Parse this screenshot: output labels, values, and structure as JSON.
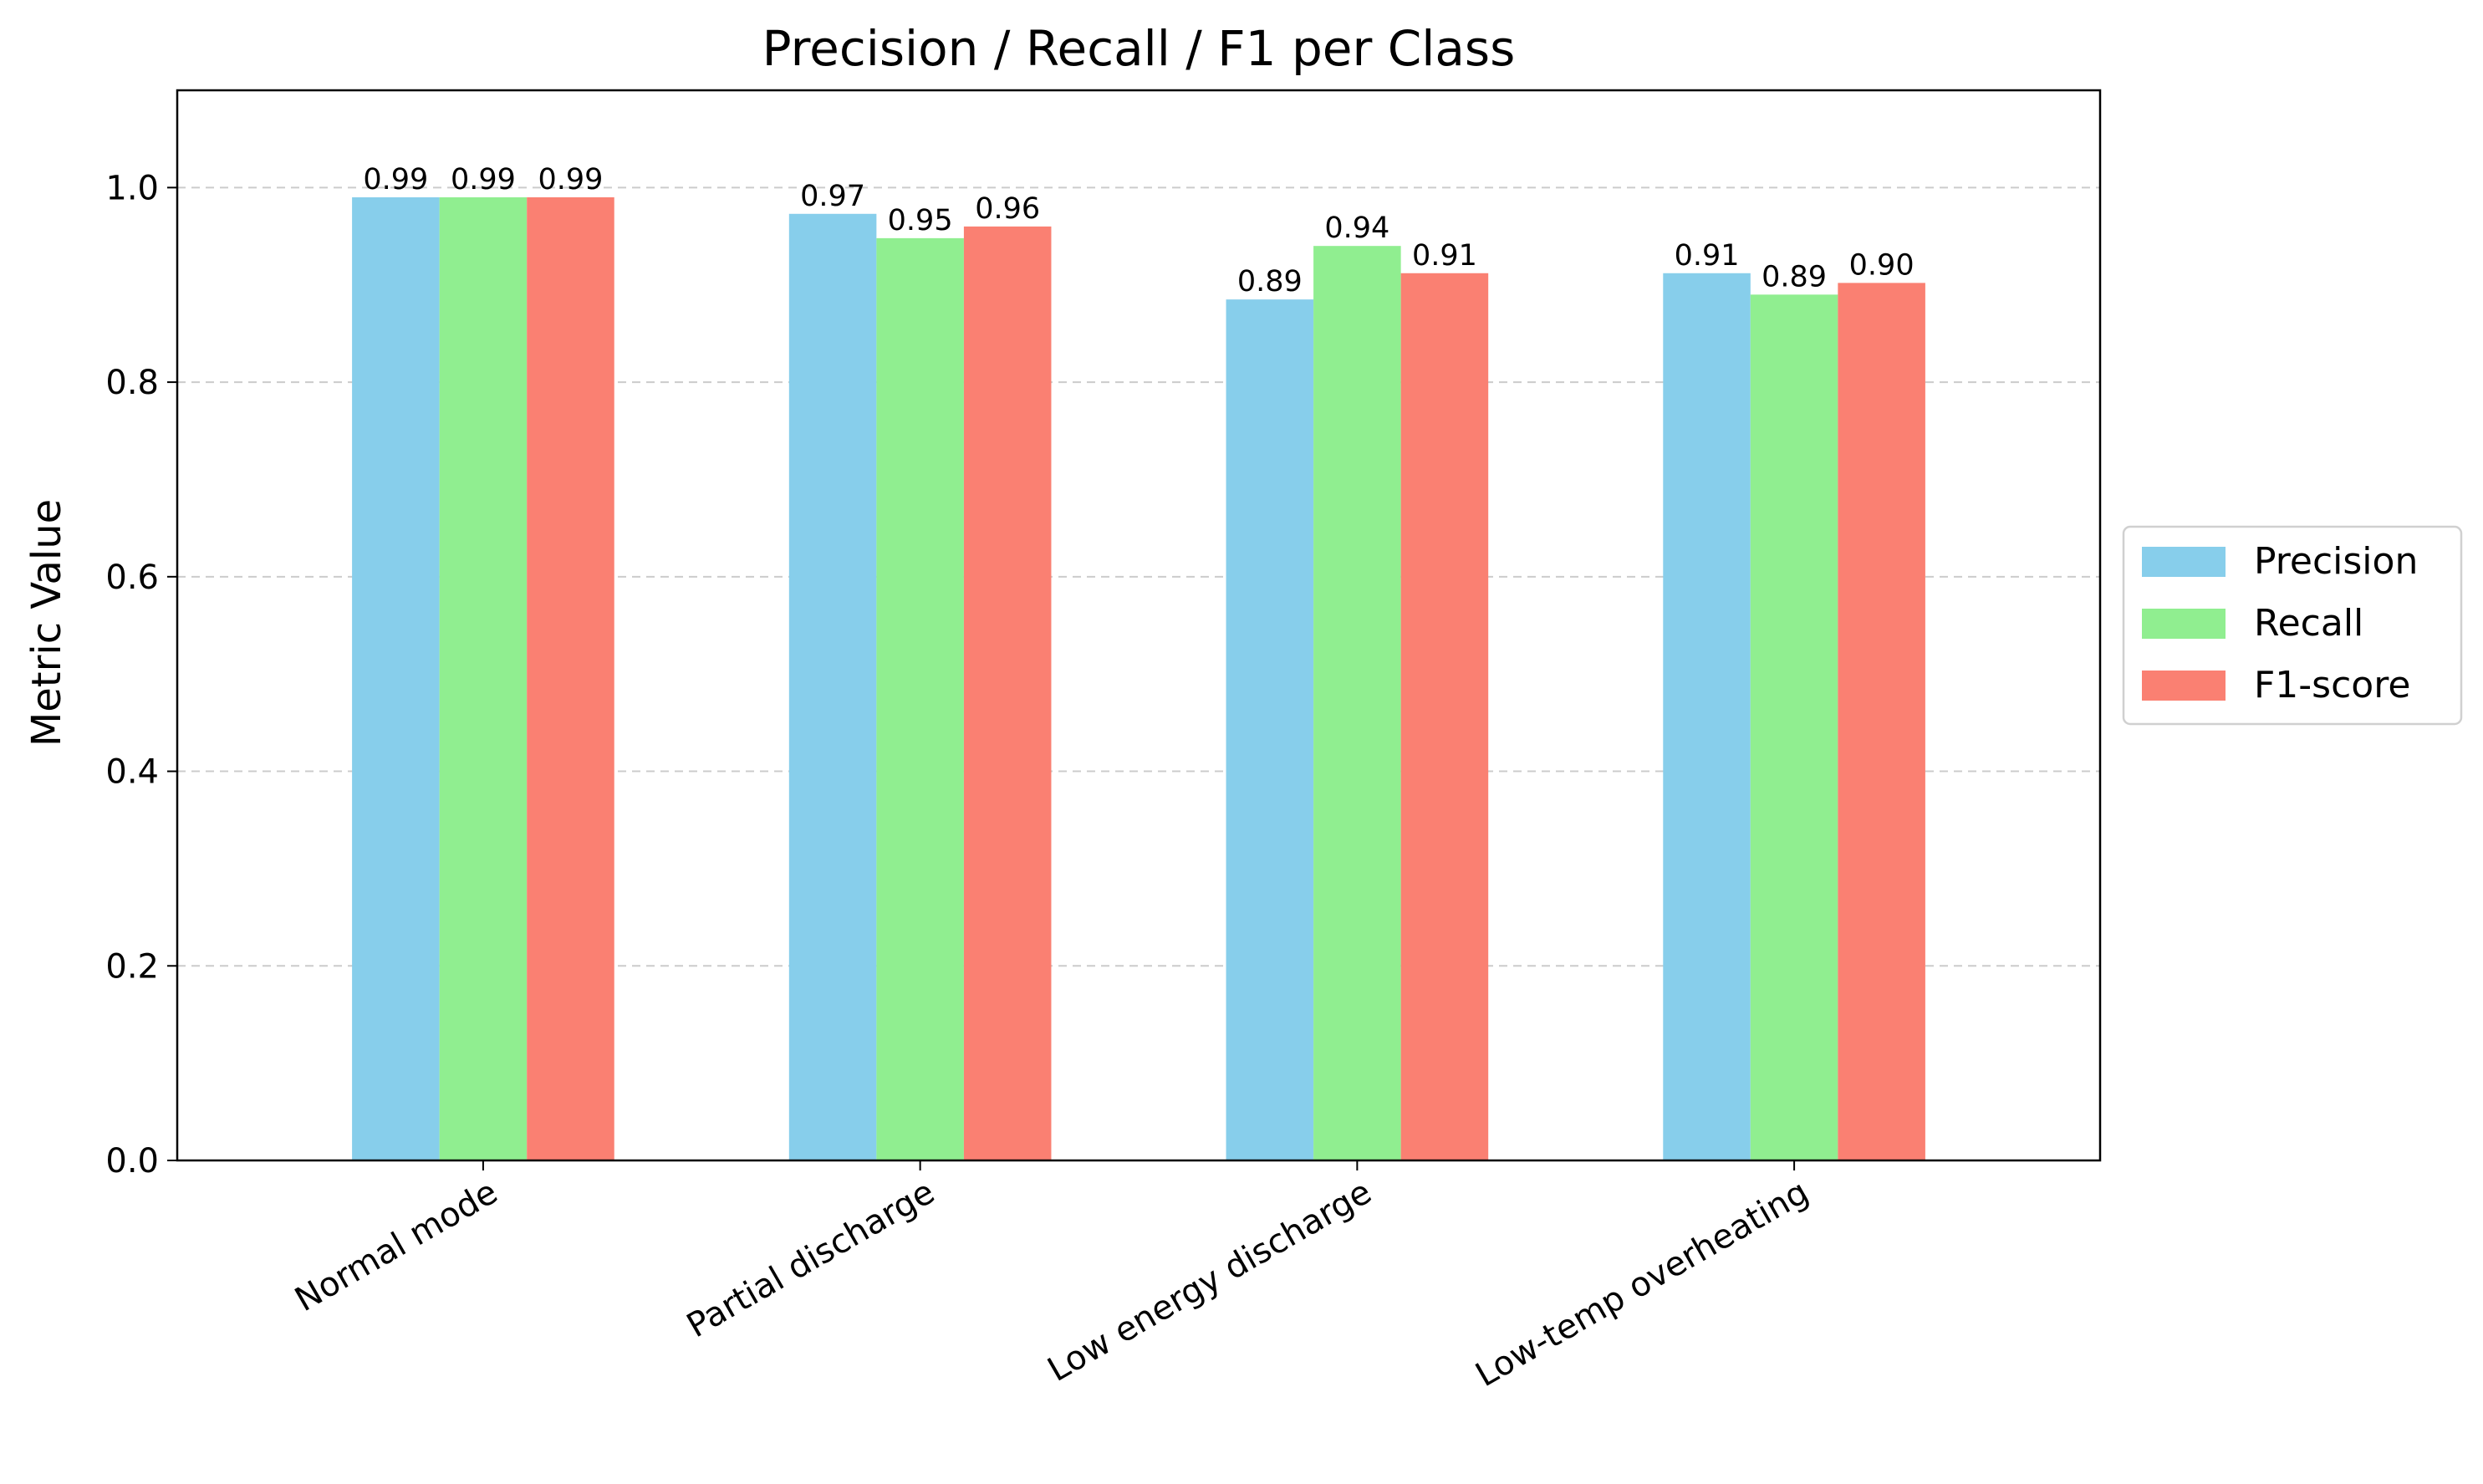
{
  "chart_data": {
    "type": "bar",
    "title": "Precision / Recall / F1 per Class",
    "xlabel": "",
    "ylabel": "Metric Value",
    "ylim": [
      0,
      1.1
    ],
    "yticks": [
      "0.0",
      "0.2",
      "0.4",
      "0.6",
      "0.8",
      "1.0"
    ],
    "grid": "y-dashed",
    "legend_position": "right",
    "categories": [
      "Normal mode",
      "Partial discharge",
      "Low energy discharge",
      "Low-temp overheating"
    ],
    "series": [
      {
        "name": "Precision",
        "color": "#87ceeb",
        "values": [
          0.99,
          0.973,
          0.885,
          0.912
        ],
        "labels": [
          "0.99",
          "0.97",
          "0.89",
          "0.91"
        ]
      },
      {
        "name": "Recall",
        "color": "#90ee90",
        "values": [
          0.99,
          0.948,
          0.94,
          0.89
        ],
        "labels": [
          "0.99",
          "0.95",
          "0.94",
          "0.89"
        ]
      },
      {
        "name": "F1-score",
        "color": "#fa8072",
        "values": [
          0.99,
          0.96,
          0.912,
          0.902
        ],
        "labels": [
          "0.99",
          "0.96",
          "0.91",
          "0.90"
        ]
      }
    ]
  }
}
